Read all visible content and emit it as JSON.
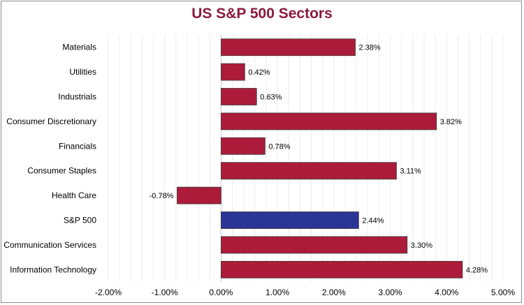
{
  "chart_data": {
    "type": "bar",
    "orientation": "horizontal",
    "title": "US S&P 500 Sectors",
    "categories": [
      "Materials",
      "Utilities",
      "Industrials",
      "Consumer Discretionary",
      "Financials",
      "Consumer Staples",
      "Health Care",
      "S&P 500",
      "Communication Services",
      "Information Technology"
    ],
    "values": [
      2.38,
      0.42,
      0.63,
      3.82,
      0.78,
      3.11,
      -0.78,
      2.44,
      3.3,
      4.28
    ],
    "value_labels": [
      "2.38%",
      "0.42%",
      "0.63%",
      "3.82%",
      "0.78%",
      "3.11%",
      "-0.78%",
      "2.44%",
      "3.30%",
      "4.28%"
    ],
    "xlim": [
      -2,
      5
    ],
    "xticks": [
      -2,
      -1,
      0,
      1,
      2,
      3,
      4,
      5
    ],
    "xtick_labels": [
      "-2.00%",
      "-1.00%",
      "0.00%",
      "1.00%",
      "2.00%",
      "3.00%",
      "4.00%",
      "5.00%"
    ],
    "grid": true,
    "colors": {
      "sector": "#ac1c3a",
      "benchmark": "#2a3596",
      "title": "#8b1a3a"
    },
    "highlight_category": "S&P 500"
  }
}
